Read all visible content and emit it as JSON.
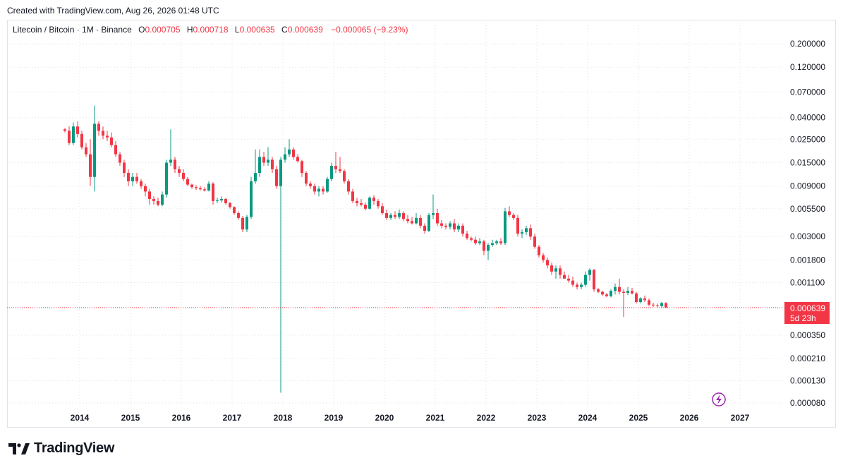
{
  "caption": "Created with TradingView.com, Aug 26, 2026 01:48 UTC",
  "legend": {
    "symbol": "Litecoin / Bitcoin · 1M · Binance",
    "o_label": "O",
    "o_value": "0.000705",
    "h_label": "H",
    "h_value": "0.000718",
    "l_label": "L",
    "l_value": "0.000635",
    "c_label": "C",
    "c_value": "0.000639",
    "change": "−0.000065 (−9.23%)"
  },
  "price_badge": {
    "price": "0.000639",
    "countdown": "5d 23h"
  },
  "brand": {
    "name": "TradingView"
  },
  "icons": [
    "lightning-icon",
    "tradingview-logo-icon"
  ],
  "colors": {
    "up": "#089981",
    "down": "#f23645",
    "grid": "#e0e3eb",
    "last_price_line": "#f23645",
    "lightning": "#9c27b0"
  },
  "chart_data": {
    "type": "candlestick",
    "title": "",
    "xlabel": "",
    "ylabel": "",
    "y_scale": "log",
    "ylim": [
      7e-05,
      0.23
    ],
    "grid": true,
    "y_ticks": [
      "0.200000",
      "0.120000",
      "0.070000",
      "0.040000",
      "0.025000",
      "0.015000",
      "0.009000",
      "0.005500",
      "0.003000",
      "0.001800",
      "0.001100",
      "0.000350",
      "0.000210",
      "0.000130",
      "0.000080"
    ],
    "x_ticks": [
      "2014",
      "2015",
      "2016",
      "2017",
      "2018",
      "2019",
      "2020",
      "2021",
      "2022",
      "2023",
      "2024",
      "2025",
      "2026",
      "2027"
    ],
    "last_price": 0.000639,
    "series": [
      {
        "values": [
          [
            0.031,
            0.032,
            0.029,
            0.03
          ],
          [
            0.03,
            0.033,
            0.022,
            0.023
          ],
          [
            0.023,
            0.036,
            0.022,
            0.033
          ],
          [
            0.033,
            0.037,
            0.026,
            0.028
          ],
          [
            0.028,
            0.03,
            0.02,
            0.021
          ],
          [
            0.021,
            0.023,
            0.017,
            0.018
          ],
          [
            0.018,
            0.025,
            0.009,
            0.011
          ],
          [
            0.011,
            0.052,
            0.008,
            0.035
          ],
          [
            0.035,
            0.037,
            0.027,
            0.03
          ],
          [
            0.03,
            0.033,
            0.025,
            0.027
          ],
          [
            0.027,
            0.03,
            0.024,
            0.026
          ],
          [
            0.026,
            0.029,
            0.021,
            0.022
          ],
          [
            0.022,
            0.024,
            0.017,
            0.018
          ],
          [
            0.018,
            0.019,
            0.014,
            0.015
          ],
          [
            0.015,
            0.016,
            0.011,
            0.012
          ],
          [
            0.012,
            0.013,
            0.009,
            0.01
          ],
          [
            0.01,
            0.012,
            0.009,
            0.011
          ],
          [
            0.011,
            0.012,
            0.0095,
            0.01
          ],
          [
            0.01,
            0.0105,
            0.0085,
            0.009
          ],
          [
            0.009,
            0.0095,
            0.0072,
            0.008
          ],
          [
            0.008,
            0.0085,
            0.006,
            0.0068
          ],
          [
            0.0068,
            0.0072,
            0.006,
            0.0065
          ],
          [
            0.0065,
            0.007,
            0.0058,
            0.006
          ],
          [
            0.006,
            0.008,
            0.0058,
            0.0075
          ],
          [
            0.0075,
            0.016,
            0.007,
            0.015
          ],
          [
            0.015,
            0.031,
            0.014,
            0.016
          ],
          [
            0.016,
            0.017,
            0.012,
            0.013
          ],
          [
            0.013,
            0.014,
            0.011,
            0.012
          ],
          [
            0.012,
            0.013,
            0.01,
            0.0105
          ],
          [
            0.0105,
            0.011,
            0.009,
            0.0093
          ],
          [
            0.0093,
            0.0095,
            0.0085,
            0.0088
          ],
          [
            0.0088,
            0.0092,
            0.0083,
            0.0086
          ],
          [
            0.0086,
            0.009,
            0.0082,
            0.0084
          ],
          [
            0.0084,
            0.0088,
            0.008,
            0.0082
          ],
          [
            0.0082,
            0.01,
            0.008,
            0.0095
          ],
          [
            0.0095,
            0.0098,
            0.006,
            0.0065
          ],
          [
            0.0065,
            0.007,
            0.0062,
            0.0066
          ],
          [
            0.0066,
            0.0072,
            0.0063,
            0.0068
          ],
          [
            0.0068,
            0.007,
            0.006,
            0.0062
          ],
          [
            0.0062,
            0.0064,
            0.0055,
            0.0057
          ],
          [
            0.0057,
            0.0058,
            0.0048,
            0.005
          ],
          [
            0.005,
            0.0052,
            0.0043,
            0.0045
          ],
          [
            0.0045,
            0.0047,
            0.0033,
            0.0035
          ],
          [
            0.0035,
            0.0048,
            0.0033,
            0.0046
          ],
          [
            0.0046,
            0.011,
            0.0044,
            0.01
          ],
          [
            0.01,
            0.02,
            0.0095,
            0.012
          ],
          [
            0.012,
            0.02,
            0.011,
            0.017
          ],
          [
            0.017,
            0.019,
            0.014,
            0.015
          ],
          [
            0.015,
            0.021,
            0.014,
            0.016
          ],
          [
            0.016,
            0.017,
            0.012,
            0.013
          ],
          [
            0.013,
            0.014,
            0.0085,
            0.009
          ],
          [
            0.009,
            0.017,
            0.0001,
            0.016
          ],
          [
            0.016,
            0.021,
            0.015,
            0.018
          ],
          [
            0.018,
            0.025,
            0.017,
            0.02
          ],
          [
            0.02,
            0.021,
            0.016,
            0.017
          ],
          [
            0.017,
            0.018,
            0.015,
            0.0155
          ],
          [
            0.0155,
            0.016,
            0.011,
            0.012
          ],
          [
            0.012,
            0.0125,
            0.009,
            0.0095
          ],
          [
            0.0095,
            0.01,
            0.0085,
            0.009
          ],
          [
            0.009,
            0.0095,
            0.0075,
            0.008
          ],
          [
            0.008,
            0.009,
            0.0072,
            0.0085
          ],
          [
            0.0085,
            0.009,
            0.0075,
            0.008
          ],
          [
            0.008,
            0.011,
            0.0078,
            0.0105
          ],
          [
            0.0105,
            0.015,
            0.01,
            0.014
          ],
          [
            0.014,
            0.019,
            0.012,
            0.013
          ],
          [
            0.013,
            0.017,
            0.012,
            0.0125
          ],
          [
            0.0125,
            0.013,
            0.0095,
            0.01
          ],
          [
            0.01,
            0.0105,
            0.0075,
            0.008
          ],
          [
            0.008,
            0.0085,
            0.0062,
            0.0065
          ],
          [
            0.0065,
            0.007,
            0.0058,
            0.0062
          ],
          [
            0.0062,
            0.0068,
            0.0058,
            0.006
          ],
          [
            0.006,
            0.0063,
            0.0053,
            0.0055
          ],
          [
            0.0055,
            0.0072,
            0.0054,
            0.007
          ],
          [
            0.007,
            0.0074,
            0.006,
            0.0065
          ],
          [
            0.0065,
            0.0068,
            0.0055,
            0.0058
          ],
          [
            0.0058,
            0.0062,
            0.0048,
            0.005
          ],
          [
            0.005,
            0.0054,
            0.0043,
            0.0045
          ],
          [
            0.0045,
            0.005,
            0.0043,
            0.0048
          ],
          [
            0.0048,
            0.0052,
            0.0044,
            0.0046
          ],
          [
            0.0046,
            0.0054,
            0.0044,
            0.005
          ],
          [
            0.005,
            0.0052,
            0.0042,
            0.0044
          ],
          [
            0.0044,
            0.0048,
            0.004,
            0.0042
          ],
          [
            0.0042,
            0.0046,
            0.0039,
            0.004
          ],
          [
            0.004,
            0.005,
            0.0039,
            0.0045
          ],
          [
            0.0045,
            0.0048,
            0.0036,
            0.0038
          ],
          [
            0.0038,
            0.004,
            0.0032,
            0.0034
          ],
          [
            0.0034,
            0.005,
            0.0033,
            0.0048
          ],
          [
            0.0048,
            0.0075,
            0.0044,
            0.005
          ],
          [
            0.005,
            0.0055,
            0.0038,
            0.004
          ],
          [
            0.004,
            0.0043,
            0.0036,
            0.0038
          ],
          [
            0.0038,
            0.004,
            0.0035,
            0.0037
          ],
          [
            0.0037,
            0.0042,
            0.0035,
            0.004
          ],
          [
            0.004,
            0.0044,
            0.0033,
            0.0035
          ],
          [
            0.0035,
            0.004,
            0.0033,
            0.0038
          ],
          [
            0.0038,
            0.004,
            0.003,
            0.0032
          ],
          [
            0.0032,
            0.0034,
            0.0028,
            0.0029
          ],
          [
            0.0029,
            0.003,
            0.0027,
            0.0028
          ],
          [
            0.0028,
            0.003,
            0.0025,
            0.0026
          ],
          [
            0.0026,
            0.0029,
            0.0025,
            0.0027
          ],
          [
            0.0027,
            0.0028,
            0.002,
            0.0022
          ],
          [
            0.0022,
            0.0026,
            0.0018,
            0.0025
          ],
          [
            0.0025,
            0.0028,
            0.0024,
            0.0026
          ],
          [
            0.0026,
            0.0028,
            0.0025,
            0.0027
          ],
          [
            0.0027,
            0.0029,
            0.0025,
            0.0026
          ],
          [
            0.0026,
            0.0056,
            0.0025,
            0.0052
          ],
          [
            0.0052,
            0.0058,
            0.0046,
            0.0048
          ],
          [
            0.0048,
            0.005,
            0.0043,
            0.0045
          ],
          [
            0.0045,
            0.0048,
            0.003,
            0.0032
          ],
          [
            0.0032,
            0.0035,
            0.0029,
            0.0033
          ],
          [
            0.0033,
            0.0038,
            0.0031,
            0.0036
          ],
          [
            0.0036,
            0.0039,
            0.0028,
            0.003
          ],
          [
            0.003,
            0.0032,
            0.0023,
            0.0024
          ],
          [
            0.0024,
            0.0025,
            0.0019,
            0.002
          ],
          [
            0.002,
            0.0021,
            0.0017,
            0.0018
          ],
          [
            0.0018,
            0.0019,
            0.0015,
            0.0016
          ],
          [
            0.0016,
            0.0017,
            0.0013,
            0.0014
          ],
          [
            0.0014,
            0.0016,
            0.0012,
            0.0015
          ],
          [
            0.0015,
            0.0016,
            0.0012,
            0.0013
          ],
          [
            0.0013,
            0.0014,
            0.0012,
            0.0012
          ],
          [
            0.0012,
            0.0013,
            0.0011,
            0.00115
          ],
          [
            0.00115,
            0.00125,
            0.001,
            0.00105
          ],
          [
            0.00105,
            0.0011,
            0.00095,
            0.001
          ],
          [
            0.001,
            0.0011,
            0.00095,
            0.00105
          ],
          [
            0.00105,
            0.0014,
            0.001,
            0.0013
          ],
          [
            0.0013,
            0.0015,
            0.00115,
            0.00145
          ],
          [
            0.00145,
            0.00148,
            0.0009,
            0.00095
          ],
          [
            0.00095,
            0.00098,
            0.00088,
            0.0009
          ],
          [
            0.0009,
            0.00092,
            0.00082,
            0.00085
          ],
          [
            0.00085,
            0.00088,
            0.0008,
            0.00082
          ],
          [
            0.00082,
            0.00095,
            0.0008,
            0.00092
          ],
          [
            0.00092,
            0.00108,
            0.00085,
            0.001
          ],
          [
            0.001,
            0.0012,
            0.00085,
            0.0009
          ],
          [
            0.0009,
            0.00095,
            0.00052,
            0.00088
          ],
          [
            0.00088,
            0.001,
            0.00084,
            0.00092
          ],
          [
            0.00092,
            0.00098,
            0.00085,
            0.00087
          ],
          [
            0.00087,
            0.0009,
            0.0007,
            0.00072
          ],
          [
            0.00072,
            0.0008,
            0.0007,
            0.00078
          ],
          [
            0.00078,
            0.00083,
            0.00072,
            0.00075
          ],
          [
            0.00075,
            0.00078,
            0.00066,
            0.00068
          ],
          [
            0.00068,
            0.00071,
            0.00065,
            0.00067
          ],
          [
            0.00067,
            0.0007,
            0.00064,
            0.00066
          ],
          [
            0.00066,
            0.00072,
            0.00064,
            0.000705
          ],
          [
            0.000705,
            0.000718,
            0.000635,
            0.000639
          ]
        ]
      }
    ]
  }
}
